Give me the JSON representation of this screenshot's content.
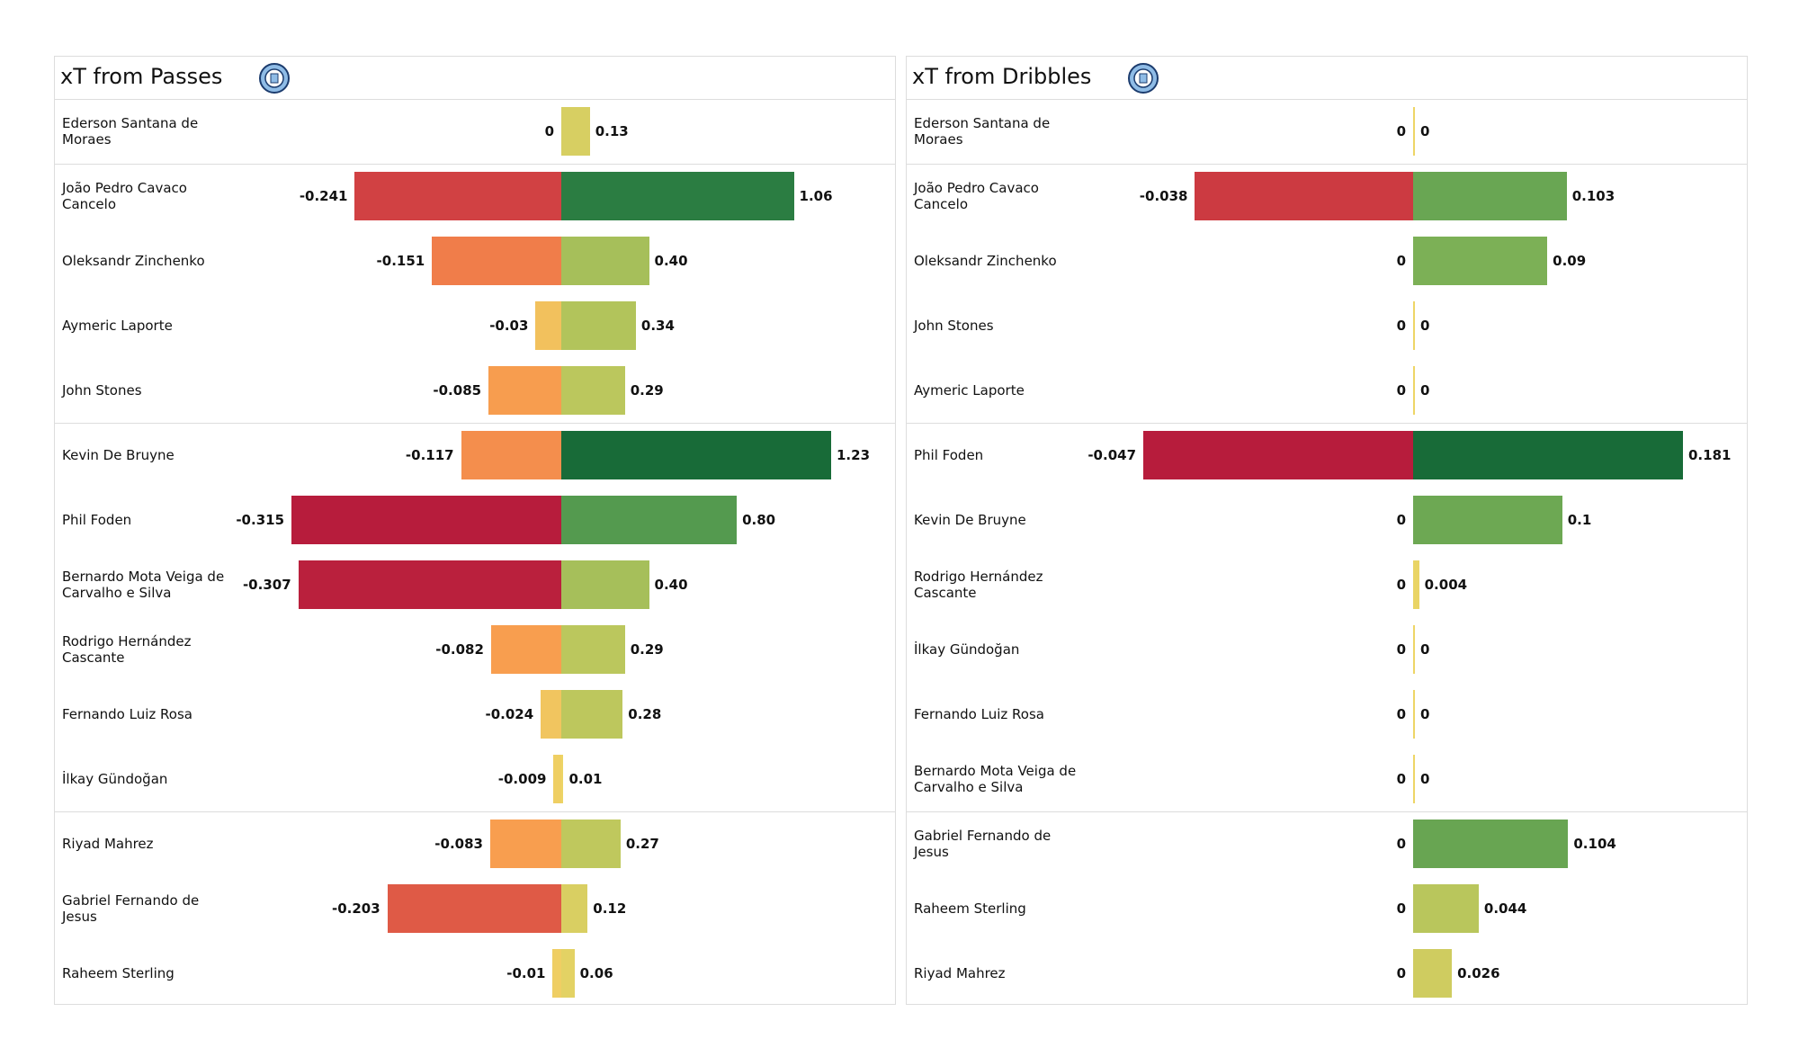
{
  "chart_data": [
    {
      "type": "diverging_bar",
      "title": "xT from Passes",
      "categories": [
        "Ederson Santana de Moraes",
        "João Pedro Cavaco Cancelo",
        "Oleksandr Zinchenko",
        "Aymeric  Laporte",
        "John Stones",
        "Kevin De Bruyne",
        "Phil Foden",
        "Bernardo Mota Veiga de Carvalho e Silva",
        "Rodrigo Hernández Cascante",
        "Fernando Luiz Rosa",
        "İlkay Gündoğan",
        "Riyad Mahrez",
        "Gabriel Fernando de Jesus",
        "Raheem Sterling"
      ],
      "series": [
        {
          "values": [
            0,
            -0.241,
            -0.151,
            -0.03,
            -0.085,
            -0.117,
            -0.315,
            -0.307,
            -0.082,
            -0.024,
            -0.009,
            -0.083,
            -0.203,
            -0.01
          ]
        },
        {
          "values": [
            0.13,
            1.06,
            0.4,
            0.34,
            0.29,
            1.23,
            0.8,
            0.4,
            0.29,
            0.28,
            0.01,
            0.27,
            0.12,
            0.06
          ],
          "value_labels": [
            "0.13",
            "1.06",
            "0.40",
            "0.34",
            "0.29",
            "1.23",
            "0.80",
            "0.40",
            "0.29",
            "0.28",
            "0.01",
            "0.27",
            "0.12",
            "0.06"
          ]
        }
      ],
      "colormap": [
        "#b71c3c",
        "#d34343",
        "#ef7a4a",
        "#f8a04f",
        "#eed566",
        "#b8c65c",
        "#7bb056",
        "#3a8c4a",
        "#186b38"
      ]
    },
    {
      "type": "diverging_bar",
      "title": "xT from Dribbles",
      "categories": [
        "Ederson Santana de Moraes",
        "João Pedro Cavaco Cancelo",
        "Oleksandr Zinchenko",
        "John Stones",
        "Aymeric  Laporte",
        "Phil Foden",
        "Kevin De Bruyne",
        "Rodrigo Hernández Cascante",
        "İlkay Gündoğan",
        "Fernando Luiz Rosa",
        "Bernardo Mota Veiga de Carvalho e Silva",
        "Gabriel Fernando de Jesus",
        "Raheem Sterling",
        "Riyad Mahrez"
      ],
      "series": [
        {
          "values": [
            0,
            -0.038,
            0,
            0,
            0,
            -0.047,
            0,
            0,
            0,
            0,
            0,
            0,
            0,
            0
          ]
        },
        {
          "values": [
            0,
            0.103,
            0.09,
            0,
            0,
            0.181,
            0.1,
            0.004,
            0,
            0,
            0,
            0.104,
            0.044,
            0.026
          ]
        }
      ],
      "colormap": [
        "#b71c3c",
        "#d34343",
        "#ef7a4a",
        "#f8a04f",
        "#eed566",
        "#b8c65c",
        "#7bb056",
        "#3a8c4a",
        "#186b38"
      ]
    }
  ]
}
